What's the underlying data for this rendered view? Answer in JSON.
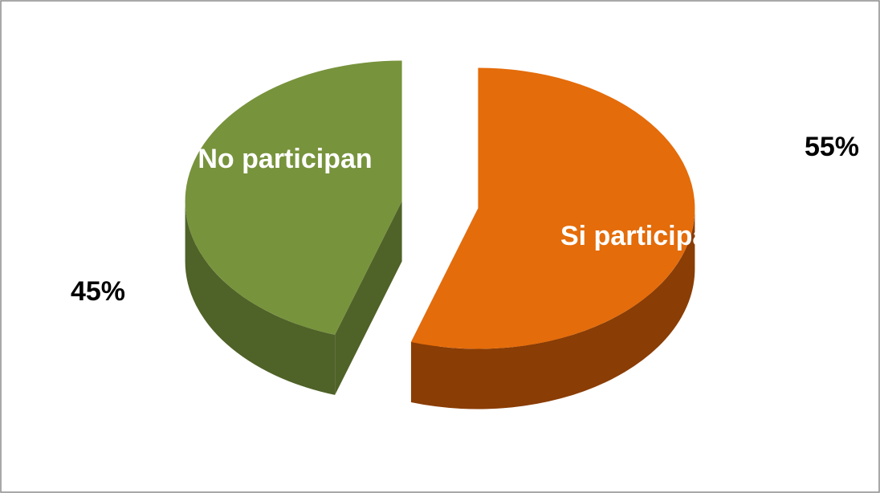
{
  "chart_data": {
    "type": "pie",
    "categories": [
      "Si participan",
      "No participan"
    ],
    "values": [
      55,
      45
    ],
    "value_labels": [
      "55%",
      "45%"
    ],
    "colors": [
      "#e46c0a",
      "#77933c"
    ],
    "side_colors": [
      "#8a3d05",
      "#4f6228"
    ]
  }
}
